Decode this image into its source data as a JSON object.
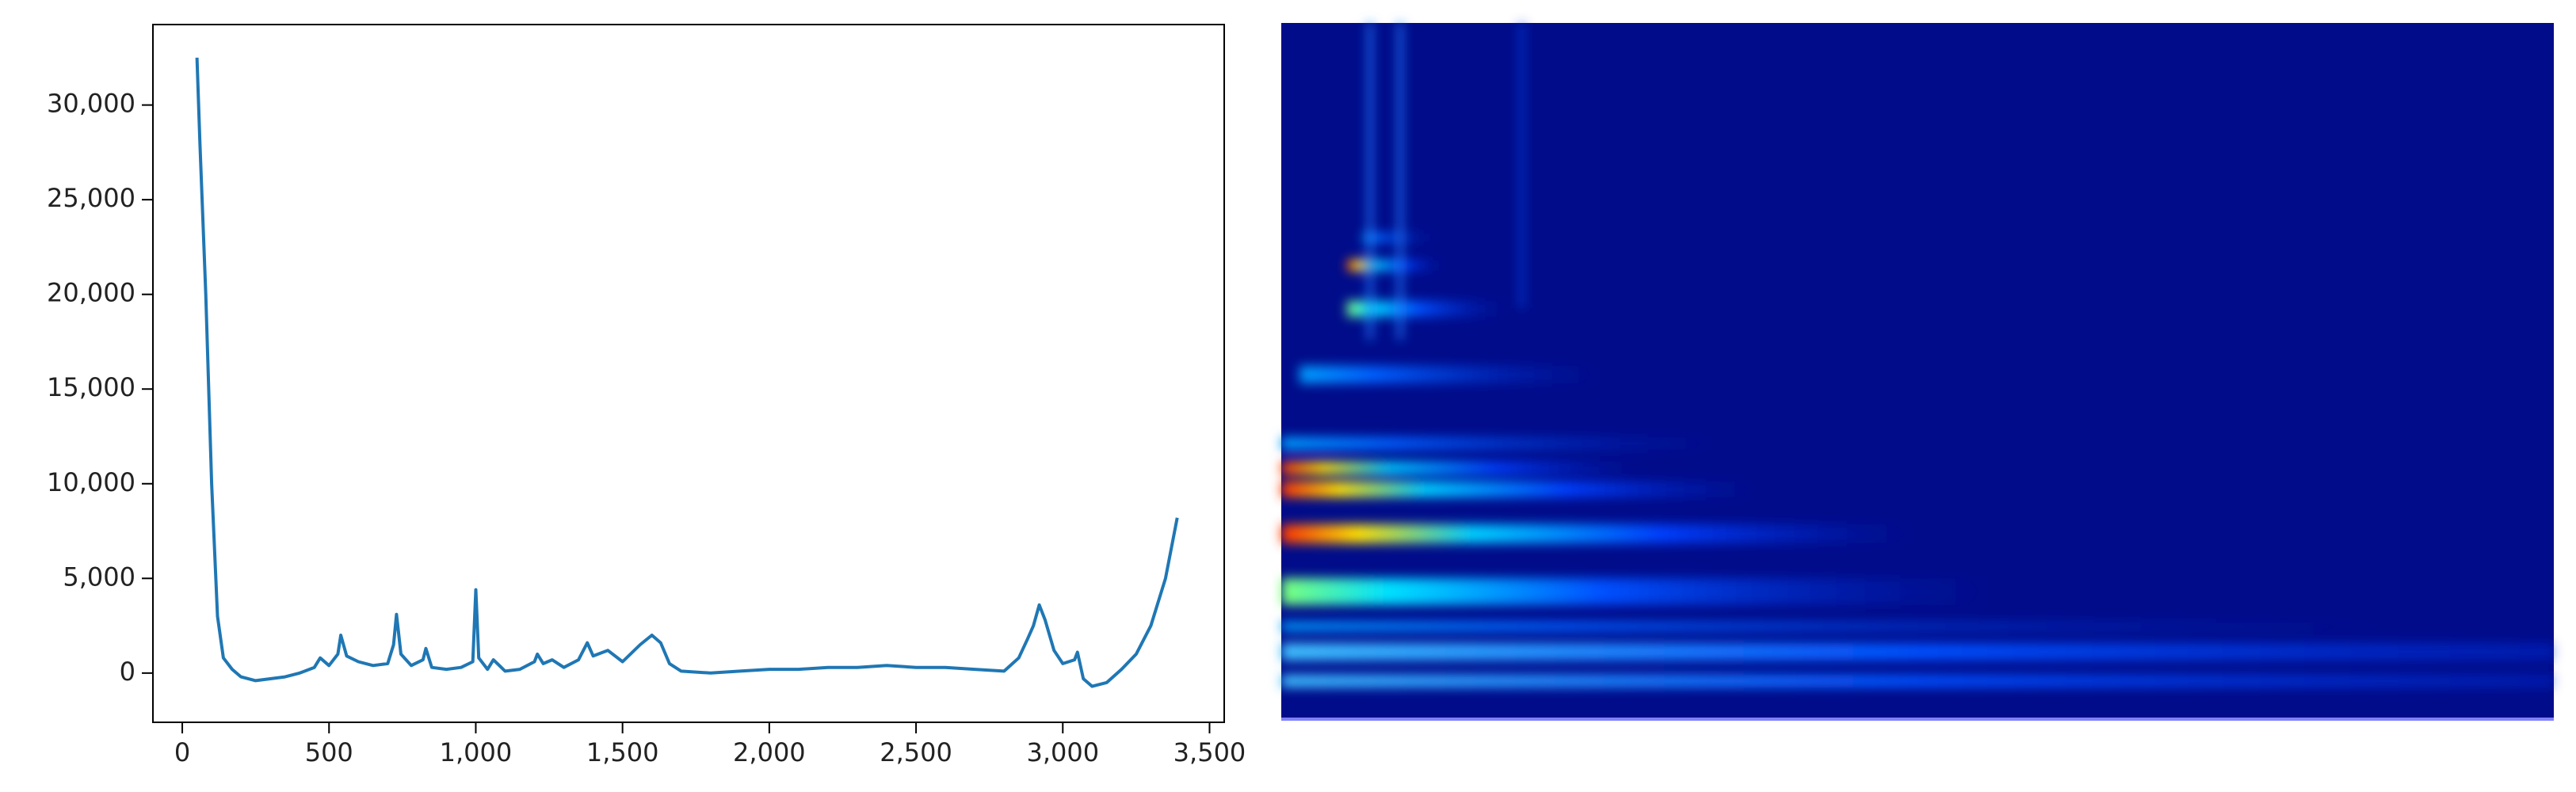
{
  "chart_data": {
    "type": "line",
    "color": "#1f77b4",
    "grid": false,
    "x": [
      50,
      60,
      80,
      100,
      120,
      140,
      170,
      200,
      250,
      300,
      350,
      400,
      450,
      470,
      500,
      530,
      540,
      560,
      600,
      650,
      700,
      720,
      730,
      745,
      780,
      820,
      830,
      850,
      900,
      950,
      990,
      1000,
      1010,
      1040,
      1060,
      1100,
      1150,
      1200,
      1210,
      1230,
      1260,
      1300,
      1350,
      1380,
      1400,
      1450,
      1500,
      1560,
      1600,
      1630,
      1660,
      1700,
      1800,
      1900,
      2000,
      2100,
      2200,
      2300,
      2400,
      2500,
      2600,
      2700,
      2800,
      2850,
      2880,
      2900,
      2920,
      2940,
      2970,
      3000,
      3040,
      3050,
      3070,
      3100,
      3150,
      3200,
      3250,
      3300,
      3350,
      3390
    ],
    "values": [
      32500,
      28000,
      20000,
      10000,
      3000,
      800,
      200,
      -200,
      -400,
      -300,
      -200,
      0,
      300,
      800,
      400,
      1000,
      2000,
      900,
      600,
      400,
      500,
      1500,
      3100,
      1000,
      400,
      700,
      1300,
      300,
      200,
      300,
      600,
      4400,
      800,
      200,
      700,
      100,
      200,
      600,
      1000,
      500,
      700,
      300,
      700,
      1600,
      900,
      1200,
      600,
      1500,
      2000,
      1600,
      500,
      100,
      0,
      100,
      200,
      200,
      300,
      300,
      400,
      300,
      300,
      200,
      100,
      800,
      1800,
      2500,
      3600,
      2800,
      1200,
      500,
      700,
      1100,
      -300,
      -700,
      -500,
      200,
      1000,
      2500,
      5000,
      8200
    ],
    "xlim": [
      -100,
      3550
    ],
    "ylim": [
      -2600,
      34250
    ],
    "xticks": [
      0,
      {
        "value": 500,
        "label": "500"
      },
      {
        "value": 1000,
        "label": "1,000"
      },
      {
        "value": 1500,
        "label": "1,500"
      },
      {
        "value": 2000,
        "label": "2,000"
      },
      {
        "value": 2500,
        "label": "2,500"
      },
      {
        "value": 3000,
        "label": "3,000"
      },
      {
        "value": 3500,
        "label": "3,500"
      }
    ],
    "yticks": [
      0,
      {
        "value": 5000,
        "label": "5,000"
      },
      {
        "value": 10000,
        "label": "10,000"
      },
      {
        "value": 15000,
        "label": "15,000"
      },
      {
        "value": 20000,
        "label": "20,000"
      },
      {
        "value": 25000,
        "label": "25,000"
      },
      {
        "value": 30000,
        "label": "30,000"
      }
    ]
  }
}
